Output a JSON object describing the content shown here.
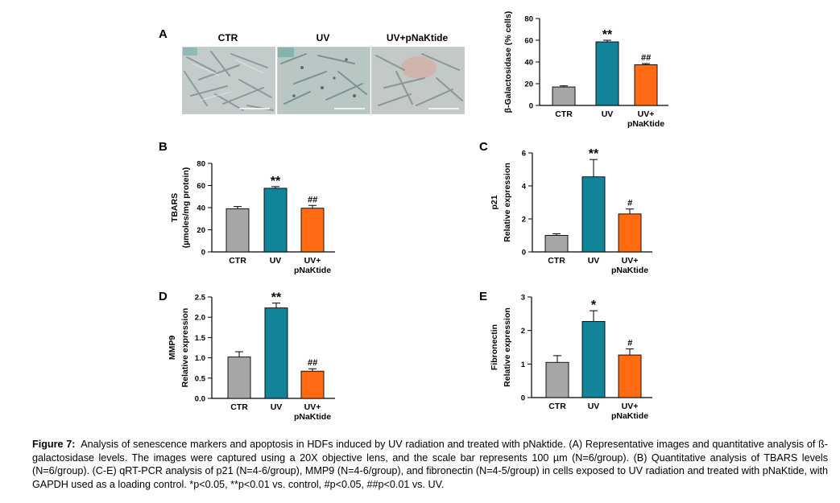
{
  "panel_letters": {
    "A": "A",
    "B": "B",
    "C": "C",
    "D": "D",
    "E": "E"
  },
  "image_labels": [
    "CTR",
    "UV",
    "UV+pNaKtide"
  ],
  "caption": {
    "label": "Figure 7:",
    "text": "Analysis of senescence markers and apoptosis in HDFs induced by UV radiation and treated with pNaktide. (A) Representative images and quantitative analysis of ß-galactosidase levels. The images were captured using a 20X objective lens, and the scale bar represents 100 µm (N=6/group). (B) Quantitative analysis of TBARS levels (N=6/group). (C-E) qRT-PCR analysis of p21 (N=4-6/group), MMP9 (N=4-6/group), and fibronectin (N=4-5/group) in cells exposed to UV radiation and treated with pNaKtide, with GAPDH used as a loading control. *p<0.05, **p<0.01 vs. control, #p<0.05, ##p<0.01 vs. UV."
  },
  "colors": {
    "CTR": "#a6a6a6",
    "UV": "#12849a",
    "UV+pNaKtide": "#ff6a12"
  },
  "chart_data": [
    {
      "id": "beta-gal",
      "type": "bar",
      "ylabel": [
        "β-Galactosidase (% cells)"
      ],
      "categories": [
        "CTR",
        "UV",
        "UV+\npNaKtide"
      ],
      "values": [
        17,
        58.5,
        37.5
      ],
      "errors": [
        1,
        1.5,
        1
      ],
      "sig": [
        "",
        "**",
        "##"
      ],
      "ylim": [
        0,
        80
      ],
      "yticks": [
        "0",
        "20",
        "40",
        "60",
        "80"
      ]
    },
    {
      "id": "tbars",
      "type": "bar",
      "ylabel": [
        "TBARS",
        "(µmoles/mg protein)"
      ],
      "categories": [
        "CTR",
        "UV",
        "UV+\npNaKtide"
      ],
      "values": [
        39,
        57.5,
        39.5
      ],
      "errors": [
        2,
        1.5,
        2.5
      ],
      "sig": [
        "",
        "**",
        "##"
      ],
      "ylim": [
        0,
        80
      ],
      "yticks": [
        "0",
        "20",
        "40",
        "60",
        "80"
      ]
    },
    {
      "id": "p21",
      "type": "bar",
      "ylabel": [
        "p21",
        "Relative expression"
      ],
      "categories": [
        "CTR",
        "UV",
        "UV+\npNaKtide"
      ],
      "values": [
        1.0,
        4.55,
        2.3
      ],
      "errors": [
        0.1,
        1.05,
        0.3
      ],
      "sig": [
        "",
        "**",
        "#"
      ],
      "ylim": [
        0,
        6
      ],
      "yticks": [
        "0",
        "2",
        "4",
        "6"
      ]
    },
    {
      "id": "mmp9",
      "type": "bar",
      "ylabel": [
        "MMP9",
        "Relative expression"
      ],
      "categories": [
        "CTR",
        "UV",
        "UV+\npNaKtide"
      ],
      "values": [
        1.02,
        2.23,
        0.67
      ],
      "errors": [
        0.13,
        0.12,
        0.06
      ],
      "sig": [
        "",
        "**",
        "##"
      ],
      "ylim": [
        0,
        2.5
      ],
      "yticks": [
        "0.0",
        "0.5",
        "1.0",
        "1.5",
        "2.0",
        "2.5"
      ]
    },
    {
      "id": "fibronectin",
      "type": "bar",
      "ylabel": [
        "Fibronectin",
        "Relative expression"
      ],
      "categories": [
        "CTR",
        "UV",
        "UV+\npNaKtide"
      ],
      "values": [
        1.05,
        2.27,
        1.27
      ],
      "errors": [
        0.2,
        0.32,
        0.18
      ],
      "sig": [
        "",
        "*",
        "#"
      ],
      "ylim": [
        0,
        3
      ],
      "yticks": [
        "0",
        "1",
        "2",
        "3"
      ]
    }
  ]
}
